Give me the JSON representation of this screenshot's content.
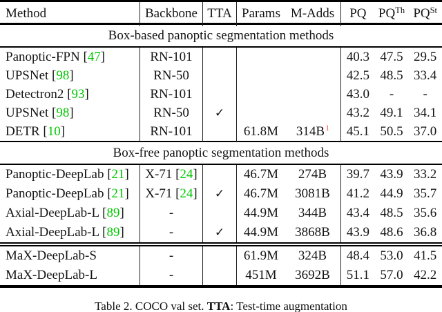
{
  "table": {
    "cite_brackets": [
      "[",
      "]"
    ],
    "header": {
      "method": "Method",
      "backbone": "Backbone",
      "tta": "TTA",
      "params": "Params",
      "madds": "M-Adds",
      "pq": "PQ",
      "pqth_base": "PQ",
      "pqth_sup": "Th",
      "pqst_base": "PQ",
      "pqst_sup": "St"
    },
    "sections": [
      {
        "title": "Box-based panoptic segmentation methods",
        "rows": [
          {
            "method": "Panoptic-FPN",
            "method_cite": "47",
            "backbone": "RN-101",
            "tta": "",
            "params": "",
            "madds": "",
            "pq": "40.3",
            "pqth": "47.5",
            "pqst": "29.5"
          },
          {
            "method": "UPSNet",
            "method_cite": "98",
            "backbone": "RN-50",
            "tta": "",
            "params": "",
            "madds": "",
            "pq": "42.5",
            "pqth": "48.5",
            "pqst": "33.4"
          },
          {
            "method": "Detectron2",
            "method_cite": "93",
            "backbone": "RN-101",
            "tta": "",
            "params": "",
            "madds": "",
            "pq": "43.0",
            "pqth": "-",
            "pqst": "-"
          },
          {
            "method": "UPSNet",
            "method_cite": "98",
            "backbone": "RN-50",
            "tta": "✓",
            "params": "",
            "madds": "",
            "pq": "43.2",
            "pqth": "49.1",
            "pqst": "34.1"
          },
          {
            "method": "DETR",
            "method_cite": "10",
            "backbone": "RN-101",
            "tta": "",
            "params": "61.8M",
            "madds": "314B",
            "madds_note": "1",
            "pq": "45.1",
            "pqth": "50.5",
            "pqst": "37.0"
          }
        ]
      },
      {
        "title": "Box-free panoptic segmentation methods",
        "rows": [
          {
            "method": "Panoptic-DeepLab",
            "method_cite": "21",
            "backbone": "X-71",
            "backbone_cite": "24",
            "tta": "",
            "params": "46.7M",
            "madds": "274B",
            "pq": "39.7",
            "pqth": "43.9",
            "pqst": "33.2"
          },
          {
            "method": "Panoptic-DeepLab",
            "method_cite": "21",
            "backbone": "X-71",
            "backbone_cite": "24",
            "tta": "✓",
            "params": "46.7M",
            "madds": "3081B",
            "pq": "41.2",
            "pqth": "44.9",
            "pqst": "35.7"
          },
          {
            "method": "Axial-DeepLab-L",
            "method_cite": "89",
            "backbone": "-",
            "tta": "",
            "params": "44.9M",
            "madds": "344B",
            "pq": "43.4",
            "pqth": "48.5",
            "pqst": "35.6"
          },
          {
            "method": "Axial-DeepLab-L",
            "method_cite": "89",
            "backbone": "-",
            "tta": "✓",
            "params": "44.9M",
            "madds": "3868B",
            "pq": "43.9",
            "pqth": "48.6",
            "pqst": "36.8"
          }
        ]
      },
      {
        "title": null,
        "rows": [
          {
            "method": "MaX-DeepLab-S",
            "backbone": "-",
            "tta": "",
            "params": "61.9M",
            "madds": "324B",
            "pq": "48.4",
            "pqth": "53.0",
            "pqst": "41.5"
          },
          {
            "method": "MaX-DeepLab-L",
            "backbone": "-",
            "tta": "",
            "params": "451M",
            "madds": "3692B",
            "pq": "51.1",
            "pqth": "57.0",
            "pqst": "42.2"
          }
        ]
      }
    ]
  },
  "caption": {
    "prefix": "Table 2. COCO val set. ",
    "tta": "TTA",
    "suffix": ": Test-time augmentation"
  },
  "colors": {
    "citation_green": "#00C800",
    "footnote_red": "#FF5252",
    "text": "#141414",
    "rule": "#000000"
  }
}
